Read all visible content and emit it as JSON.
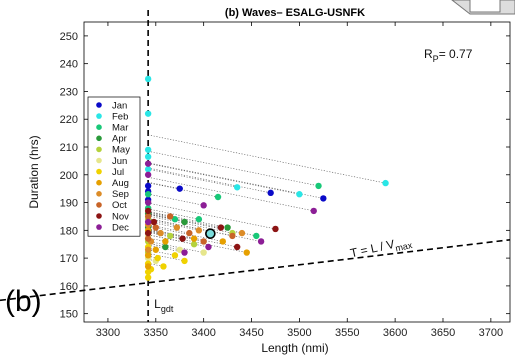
{
  "chart_data": {
    "type": "scatter",
    "title": "(b) Waves– ESALG-USNFK",
    "xlabel": "Length (nmi)",
    "ylabel": "Duration (hrs)",
    "xlim": [
      3275,
      3720
    ],
    "ylim": [
      147,
      255
    ],
    "xticks": [
      3300,
      3350,
      3400,
      3450,
      3500,
      3550,
      3600,
      3650,
      3700
    ],
    "yticks": [
      150,
      160,
      170,
      180,
      190,
      200,
      210,
      220,
      230,
      240,
      250
    ],
    "panel_label": "(b)",
    "rp_label": "R",
    "rp_sub": "P",
    "rp_value": "= 0.77",
    "gdt_label": "L",
    "gdt_sub": "gdt",
    "gdt_x": 3342,
    "eq_label_left": "T",
    "eq_label_mid": " = L / V",
    "eq_label_sub": "max",
    "eq_line": [
      [
        3275,
        154.8
      ],
      [
        3720,
        176.6
      ]
    ],
    "highlight": [
      3407,
      178.8
    ],
    "legend_position": "top-left",
    "series": [
      {
        "name": "Jan",
        "color": "#0a0ac8",
        "points": [
          [
            3342,
            196
          ],
          [
            3342,
            194
          ],
          [
            3342,
            191
          ],
          [
            3375,
            195
          ],
          [
            3470,
            193.5
          ],
          [
            3525,
            191.5
          ]
        ]
      },
      {
        "name": "Feb",
        "color": "#29e6e6",
        "points": [
          [
            3342,
            234.5
          ],
          [
            3342,
            222
          ],
          [
            3342,
            209
          ],
          [
            3342,
            206.5
          ],
          [
            3342,
            202
          ],
          [
            3590,
            197
          ],
          [
            3500,
            193
          ],
          [
            3435,
            195.5
          ]
        ]
      },
      {
        "name": "Mar",
        "color": "#18c878",
        "points": [
          [
            3342,
            193
          ],
          [
            3342,
            188
          ],
          [
            3520,
            196
          ],
          [
            3415,
            192
          ],
          [
            3395,
            184
          ],
          [
            3455,
            178
          ],
          [
            3370,
            184
          ]
        ]
      },
      {
        "name": "Apr",
        "color": "#2a9a3a",
        "points": [
          [
            3342,
            186
          ],
          [
            3342,
            181
          ],
          [
            3380,
            183
          ],
          [
            3425,
            181
          ],
          [
            3360,
            174
          ]
        ]
      },
      {
        "name": "May",
        "color": "#b4d23c",
        "points": [
          [
            3342,
            184
          ],
          [
            3342,
            176
          ],
          [
            3342,
            172
          ],
          [
            3365,
            178
          ],
          [
            3390,
            175
          ],
          [
            3430,
            179
          ]
        ]
      },
      {
        "name": "Jun",
        "color": "#e6e68c",
        "points": [
          [
            3342,
            178
          ],
          [
            3342,
            170
          ],
          [
            3350,
            169
          ],
          [
            3375,
            173
          ],
          [
            3400,
            172
          ]
        ]
      },
      {
        "name": "Jul",
        "color": "#f0d200",
        "points": [
          [
            3342,
            174
          ],
          [
            3342,
            168
          ],
          [
            3342,
            165
          ],
          [
            3342,
            163
          ],
          [
            3345,
            166
          ],
          [
            3352,
            170
          ],
          [
            3358,
            167
          ],
          [
            3370,
            171
          ],
          [
            3380,
            169
          ]
        ]
      },
      {
        "name": "Aug",
        "color": "#e6a000",
        "points": [
          [
            3342,
            180
          ],
          [
            3342,
            171
          ],
          [
            3342,
            167
          ],
          [
            3350,
            173
          ],
          [
            3360,
            176
          ],
          [
            3390,
            177
          ],
          [
            3420,
            176
          ],
          [
            3445,
            172
          ]
        ]
      },
      {
        "name": "Sep",
        "color": "#dc8c28",
        "points": [
          [
            3342,
            182
          ],
          [
            3342,
            173
          ],
          [
            3345,
            176
          ],
          [
            3355,
            179
          ],
          [
            3372,
            181
          ],
          [
            3395,
            180
          ],
          [
            3440,
            179
          ]
        ]
      },
      {
        "name": "Oct",
        "color": "#c86428",
        "points": [
          [
            3342,
            185
          ],
          [
            3342,
            177
          ],
          [
            3350,
            181
          ],
          [
            3365,
            185
          ],
          [
            3385,
            179
          ],
          [
            3400,
            176
          ],
          [
            3430,
            178
          ]
        ]
      },
      {
        "name": "Nov",
        "color": "#8c1414",
        "points": [
          [
            3342,
            187
          ],
          [
            3342,
            179
          ],
          [
            3348,
            183
          ],
          [
            3378,
            177
          ],
          [
            3418,
            181
          ],
          [
            3475,
            180.5
          ],
          [
            3435,
            174
          ]
        ]
      },
      {
        "name": "Dec",
        "color": "#8c1e96",
        "points": [
          [
            3342,
            204
          ],
          [
            3342,
            200
          ],
          [
            3342,
            190
          ],
          [
            3342,
            183
          ],
          [
            3400,
            189
          ],
          [
            3515,
            187
          ],
          [
            3405,
            174
          ],
          [
            3380,
            172
          ],
          [
            3460,
            176
          ]
        ]
      }
    ]
  }
}
